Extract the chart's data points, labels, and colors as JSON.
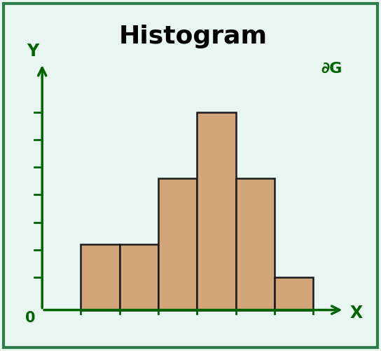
{
  "title": "Histogram",
  "bar_heights": [
    2,
    2,
    4,
    6,
    4,
    1
  ],
  "bar_color": "#D2A679",
  "bar_edgecolor": "#1a1a1a",
  "background_color": "#E8F5F0",
  "axis_color": "#006400",
  "x_label": "X",
  "y_label": "Y",
  "origin_label": "0",
  "title_fontsize": 26,
  "axis_label_fontsize": 17,
  "bar_linewidth": 1.8,
  "num_yticks": 7,
  "figure_bg": "#E8F5F0",
  "border_color": "#2d7d4a",
  "gfg_color": "#006400"
}
